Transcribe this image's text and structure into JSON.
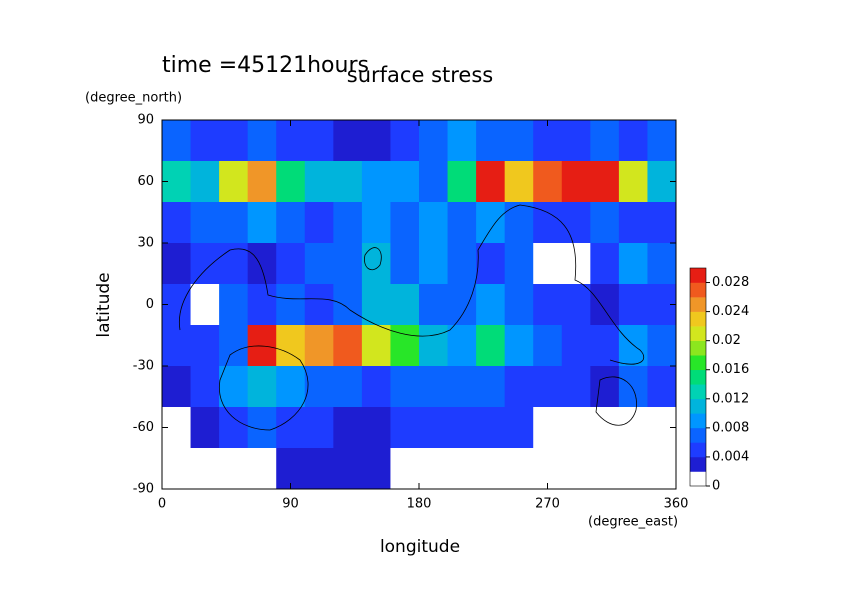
{
  "chart_data": {
    "type": "contour",
    "title": "surface stress",
    "subtitle": "time =45121hours",
    "xlabel": "longitude",
    "xunits": "(degree_east)",
    "ylabel": "latitude",
    "yunits": "(degree_north)",
    "xlim": [
      0,
      360
    ],
    "ylim": [
      -90,
      90
    ],
    "xticks": [
      0,
      90,
      180,
      270,
      360
    ],
    "yticks": [
      -90,
      -60,
      -30,
      0,
      30,
      60,
      90
    ],
    "x": [
      10,
      30,
      50,
      70,
      90,
      110,
      130,
      150,
      170,
      190,
      210,
      230,
      250,
      270,
      290,
      310,
      330,
      350
    ],
    "y": [
      80,
      60,
      40,
      20,
      0,
      -20,
      -40,
      -60,
      -80
    ],
    "z": [
      [
        0.006,
        0.005,
        0.005,
        0.006,
        0.005,
        0.004,
        0.003,
        0.003,
        0.004,
        0.006,
        0.008,
        0.006,
        0.006,
        0.005,
        0.005,
        0.006,
        0.005,
        0.006
      ],
      [
        0.012,
        0.01,
        0.02,
        0.024,
        0.014,
        0.01,
        0.01,
        0.008,
        0.008,
        0.006,
        0.014,
        0.03,
        0.022,
        0.026,
        0.03,
        0.03,
        0.02,
        0.01
      ],
      [
        0.004,
        0.006,
        0.006,
        0.008,
        0.006,
        0.004,
        0.006,
        0.008,
        0.006,
        0.008,
        0.006,
        0.008,
        0.006,
        0.004,
        0.004,
        0.006,
        0.004,
        0.005
      ],
      [
        0.003,
        0.004,
        0.005,
        0.002,
        0.004,
        0.006,
        0.006,
        0.01,
        0.006,
        0.008,
        0.006,
        0.004,
        0.006,
        0,
        0,
        0.004,
        0.008,
        0.006
      ],
      [
        0.004,
        0,
        0.006,
        0.004,
        0.006,
        0.004,
        0.006,
        0.01,
        0.01,
        0.006,
        0.006,
        0.008,
        0.006,
        0.004,
        0.004,
        0.002,
        0.004,
        0.004
      ],
      [
        0.004,
        0.004,
        0.006,
        0.028,
        0.022,
        0.024,
        0.026,
        0.02,
        0.016,
        0.01,
        0.008,
        0.014,
        0.008,
        0.006,
        0.004,
        0.004,
        0.008,
        0.006
      ],
      [
        0.003,
        0.004,
        0.008,
        0.01,
        0.008,
        0.006,
        0.006,
        0.004,
        0.006,
        0.006,
        0.006,
        0.006,
        0.004,
        0.004,
        0.004,
        0.002,
        0.006,
        0.004
      ],
      [
        0,
        0.002,
        0.004,
        0.006,
        0.004,
        0.004,
        0.003,
        0.002,
        0.004,
        0.004,
        0.004,
        0.004,
        0.004,
        0,
        0,
        0,
        0,
        0
      ],
      [
        0,
        0,
        0,
        0,
        0.002,
        0.002,
        0.002,
        0.002,
        0,
        0,
        0,
        0,
        0,
        0,
        0,
        0,
        0,
        0
      ]
    ],
    "clim": [
      0,
      0.03
    ],
    "cticks": [
      0,
      0.004,
      0.008,
      0.012,
      0.016,
      0.02,
      0.024,
      0.028
    ],
    "colors": [
      "#ffffff",
      "#1e1ed2",
      "#1e3cff",
      "#0a64ff",
      "#0096ff",
      "#00b4dc",
      "#00d2b4",
      "#00dc78",
      "#28e628",
      "#8ce61e",
      "#d2e61e",
      "#f0c81e",
      "#f09628",
      "#f05a1e",
      "#e61e14"
    ]
  }
}
